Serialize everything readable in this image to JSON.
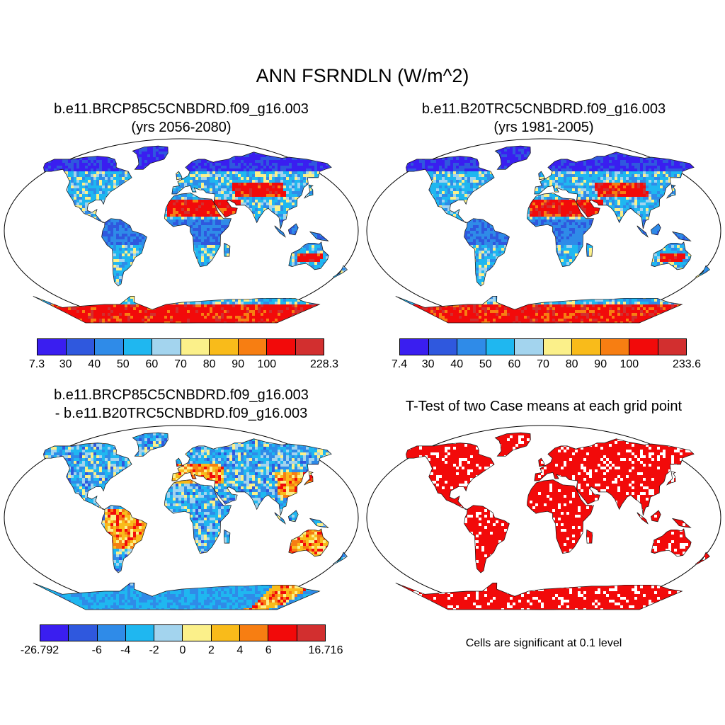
{
  "title": "ANN FSRNDLN (W/m^2)",
  "palette": [
    "#3a1ef0",
    "#2f58de",
    "#2f8be8",
    "#1fb7f0",
    "#a3d4ee",
    "#fbf08a",
    "#f9bb1a",
    "#f77e12",
    "#f20a0a",
    "#d22f2f"
  ],
  "panels": [
    {
      "title_line1": "b.e11.BRCP85C5CNBDRD.f09_g16.003",
      "title_line2": "(yrs 2056-2080)",
      "colorbar_labels": [
        "7.3",
        "30",
        "40",
        "50",
        "60",
        "70",
        "80",
        "90",
        "100",
        "228.3"
      ],
      "map_style": "absolute"
    },
    {
      "title_line1": "b.e11.B20TRC5CNBDRD.f09_g16.003",
      "title_line2": "(yrs 1981-2005)",
      "colorbar_labels": [
        "7.4",
        "30",
        "40",
        "50",
        "60",
        "70",
        "80",
        "90",
        "100",
        "233.6"
      ],
      "map_style": "absolute"
    },
    {
      "title_line1": "b.e11.BRCP85C5CNBDRD.f09_g16.003",
      "title_line2": "- b.e11.B20TRC5CNBDRD.f09_g16.003",
      "colorbar_labels": [
        "-26.792",
        "-6",
        "-4",
        "-2",
        "0",
        "2",
        "4",
        "6",
        "16.716"
      ],
      "map_style": "difference"
    },
    {
      "title_line1": "T-Test of two Case means at each grid point",
      "note": "Cells are significant at 0.1 level",
      "map_style": "significance"
    }
  ]
}
